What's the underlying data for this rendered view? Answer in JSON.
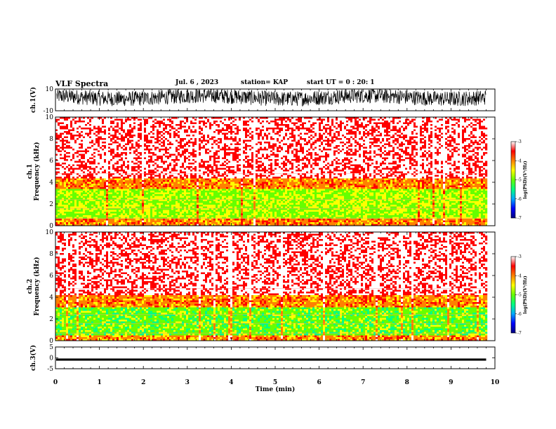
{
  "header": {
    "title": "VLF Spectra",
    "date": "Jul. 6 , 2023",
    "station": "station= KAP",
    "start": "start UT = 0 : 20: 1"
  },
  "colors": {
    "spectrum_stops": [
      "#00007f",
      "#0000ff",
      "#00aaff",
      "#00ff80",
      "#66ff00",
      "#ffff00",
      "#ff8000",
      "#ff0000",
      "#ffffff"
    ],
    "axes": "#000000"
  },
  "chart_data": [
    {
      "id": "ch1",
      "type": "line",
      "ylabel": "ch.1(V)",
      "ylim": [
        -10,
        10
      ],
      "yticks": [
        "10",
        "-10"
      ],
      "xlim": [
        0,
        10
      ],
      "description_of_signal": "noisy waveform, mostly between about -5 and 10 V"
    },
    {
      "id": "spec1",
      "type": "heatmap",
      "ylabel_line1": "ch.1",
      "ylabel_line2": "Frequency (kHz)",
      "ylim": [
        0,
        10
      ],
      "yticks": [
        "0",
        "2",
        "4",
        "6",
        "8",
        "10"
      ],
      "xlim": [
        0,
        10
      ],
      "data_end_min": 9.8,
      "band_profile_khz": [
        {
          "from": 0,
          "to": 0.7,
          "level": -4.0
        },
        {
          "from": 0.7,
          "to": 3.4,
          "level": -4.8
        },
        {
          "from": 3.4,
          "to": 4.5,
          "level": -4.0
        },
        {
          "from": 4.5,
          "to": 10,
          "level": -3.2
        }
      ],
      "colorbar": {
        "label": "log(PSD)(V²/Hz)",
        "ticks": [
          "-3",
          "-4",
          "-5",
          "-6",
          "-7"
        ],
        "range": [
          -7,
          -3
        ]
      }
    },
    {
      "id": "spec2",
      "type": "heatmap",
      "ylabel_line1": "ch.2",
      "ylabel_line2": "Frequency (kHz)",
      "ylim": [
        0,
        10
      ],
      "yticks": [
        "0",
        "2",
        "4",
        "6",
        "8",
        "10"
      ],
      "xlim": [
        0,
        10
      ],
      "data_end_min": 9.8,
      "band_profile_khz": [
        {
          "from": 0,
          "to": 0.6,
          "level": -4.0
        },
        {
          "from": 0.6,
          "to": 3.2,
          "level": -5.0
        },
        {
          "from": 3.2,
          "to": 4.3,
          "level": -4.0
        },
        {
          "from": 4.3,
          "to": 10,
          "level": -3.2
        }
      ],
      "colorbar": {
        "label": "log(PSD)(V²/Hz)",
        "ticks": [
          "-3",
          "-4",
          "-5",
          "-6",
          "-7"
        ],
        "range": [
          -7,
          -3
        ]
      }
    },
    {
      "id": "ch3",
      "type": "line",
      "ylabel": "ch.3(V)",
      "ylim": [
        -5,
        5
      ],
      "yticks": [
        "5",
        "0",
        "-5"
      ],
      "xlim": [
        0,
        10
      ],
      "xlabel": "Time (min)",
      "xticks": [
        "0",
        "1",
        "2",
        "3",
        "4",
        "5",
        "6",
        "7",
        "8",
        "9",
        "10"
      ],
      "signal_band": [
        -1.3,
        -0.3
      ]
    }
  ]
}
